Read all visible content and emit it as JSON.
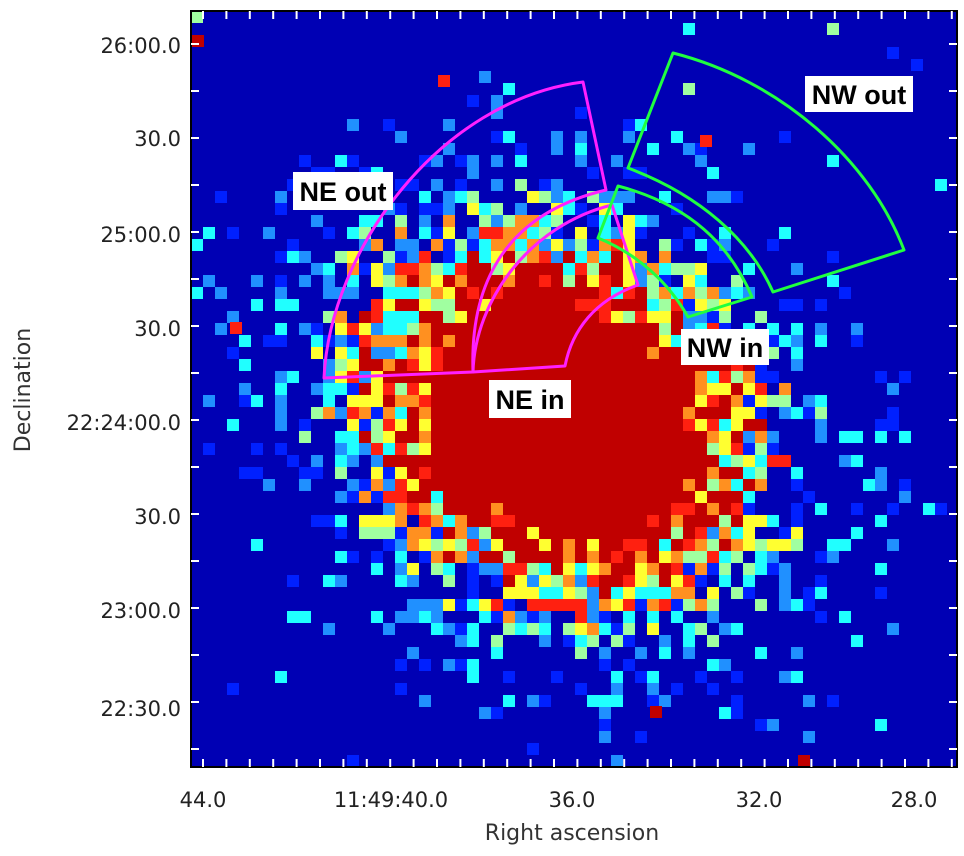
{
  "chart_data": {
    "type": "heatmap",
    "title": "",
    "xlabel": "Right ascension",
    "ylabel": "Declination",
    "x_ticks": [
      "44.0",
      "11:49:40.0",
      "36.0",
      "32.0",
      "28.0"
    ],
    "y_ticks": [
      "26:00.0",
      "30.0",
      "25:00.0",
      "30.0",
      "22:24:00.0",
      "30.0",
      "23:00.0",
      "22:30.0"
    ],
    "xlim_seconds_of_RA": [
      44.0,
      27.5
    ],
    "ylim_arcsec_from_22_24_00": [
      -110,
      120
    ],
    "colormap": "jet",
    "background_color": "#0000b4",
    "regions": [
      {
        "name": "NE out",
        "color": "#ff20ff",
        "label": "NE out"
      },
      {
        "name": "NE in",
        "color": "#ff20ff",
        "label": "NE in"
      },
      {
        "name": "NW out",
        "color": "#20ff40",
        "label": "NW out"
      },
      {
        "name": "NW in",
        "color": "#20ff40",
        "label": "NW in"
      }
    ]
  }
}
